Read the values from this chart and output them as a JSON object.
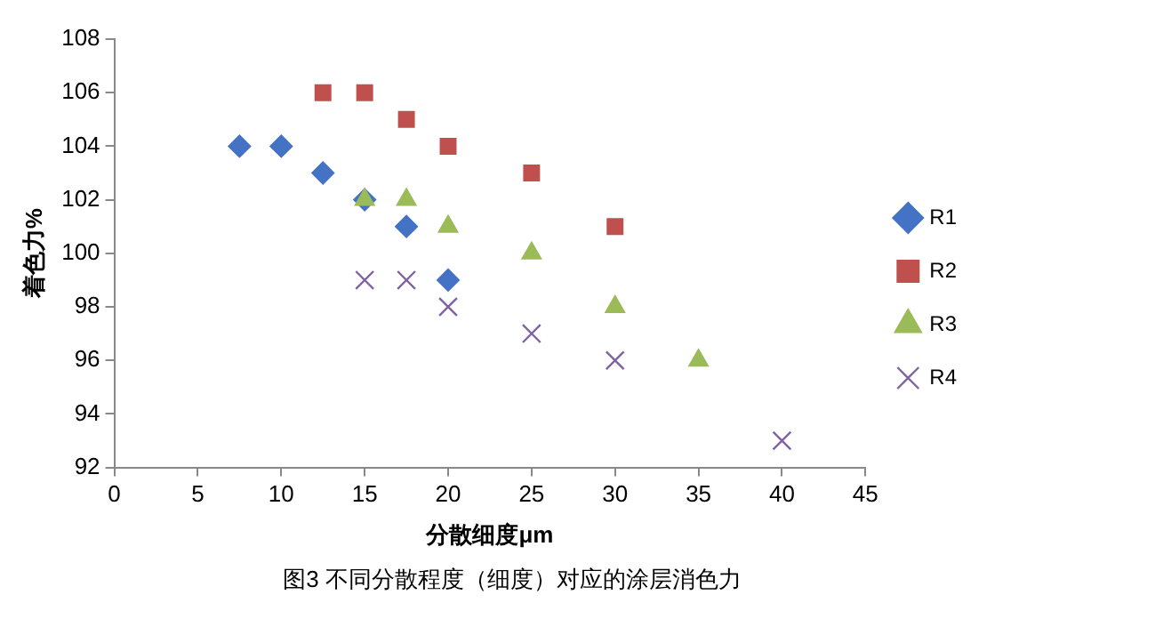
{
  "chart_data": {
    "type": "scatter",
    "xlabel": "分散细度μm",
    "ylabel": "着色力%",
    "annotations": [
      "图3 不同分散程度（细度）对应的涂层消色力"
    ],
    "xlim": [
      0,
      45
    ],
    "xticks": [
      0,
      5,
      10,
      15,
      20,
      25,
      30,
      35,
      40,
      45
    ],
    "ylim": [
      92,
      108
    ],
    "yticks": [
      92,
      94,
      96,
      98,
      100,
      102,
      104,
      106,
      108
    ],
    "grid": false,
    "legend": "right",
    "series": [
      {
        "name": "R1",
        "color": "#4472c4",
        "marker": "diamond",
        "x": [
          7.5,
          10,
          12.5,
          15,
          17.5,
          20
        ],
        "values": [
          104,
          104,
          103,
          102,
          101,
          99
        ]
      },
      {
        "name": "R2",
        "color": "#c0504d",
        "marker": "square",
        "x": [
          12.5,
          15,
          17.5,
          20,
          25,
          30
        ],
        "values": [
          106,
          106,
          105,
          104,
          103,
          101
        ]
      },
      {
        "name": "R3",
        "color": "#9bbb59",
        "marker": "triangle",
        "x": [
          15,
          17.5,
          20,
          25,
          30,
          35
        ],
        "values": [
          102,
          102,
          101,
          100,
          98,
          96
        ]
      },
      {
        "name": "R4",
        "color": "#8064a2",
        "marker": "cross",
        "x": [
          15,
          17.5,
          20,
          25,
          30,
          40
        ],
        "values": [
          99,
          99,
          98,
          97,
          96,
          93
        ]
      }
    ]
  }
}
